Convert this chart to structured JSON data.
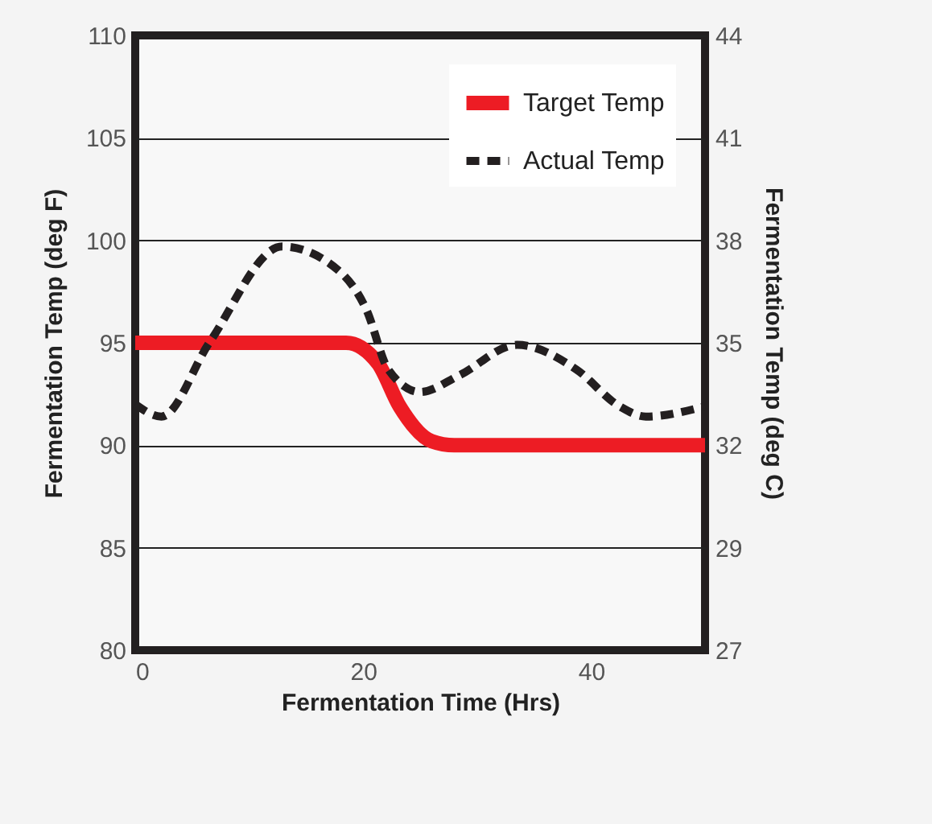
{
  "chart_data": {
    "type": "line",
    "xlabel": "Fermentation Time (Hrs)",
    "ylabel": "Fermentation Temp (deg F)",
    "y2label": "Fermentation Temp (deg C)",
    "xlim": [
      0,
      50
    ],
    "xticks": [
      0,
      20,
      40
    ],
    "ylim": [
      80,
      110
    ],
    "yticks": [
      80,
      85,
      90,
      95,
      100,
      105,
      110
    ],
    "y2lim": [
      26.6,
      43.7
    ],
    "y2ticks": [
      {
        "value": 26.6,
        "label": "27"
      },
      {
        "value": 29.45,
        "label": "29"
      },
      {
        "value": 32.3,
        "label": "32"
      },
      {
        "value": 35.15,
        "label": "35"
      },
      {
        "value": 38,
        "label": "38"
      },
      {
        "value": 40.85,
        "label": "41"
      },
      {
        "value": 43.7,
        "label": "44"
      }
    ],
    "grid": "y",
    "legend": "top right",
    "marker": "none",
    "series": [
      {
        "name": "Target Temp",
        "color": "#ed1c24",
        "line_style": "solid",
        "x": [
          0,
          18.5,
          21.3,
          23.2,
          26,
          28,
          50
        ],
        "values": [
          95,
          95,
          94.0,
          91.9,
          90.2,
          90,
          90
        ]
      },
      {
        "name": "Actual Temp",
        "color": "#231f20",
        "line_style": "dashed",
        "x": [
          0,
          2.3,
          6.5,
          12.9,
          17.9,
          20.3,
          22.2,
          25.0,
          28.4,
          33.5,
          38.7,
          42.5,
          44.8,
          50
        ],
        "values": [
          92.0,
          91.4,
          95,
          99.7,
          98.5,
          96.6,
          93.7,
          92.6,
          93.4,
          94.9,
          93.7,
          91.9,
          91.4,
          91.9
        ]
      }
    ]
  }
}
